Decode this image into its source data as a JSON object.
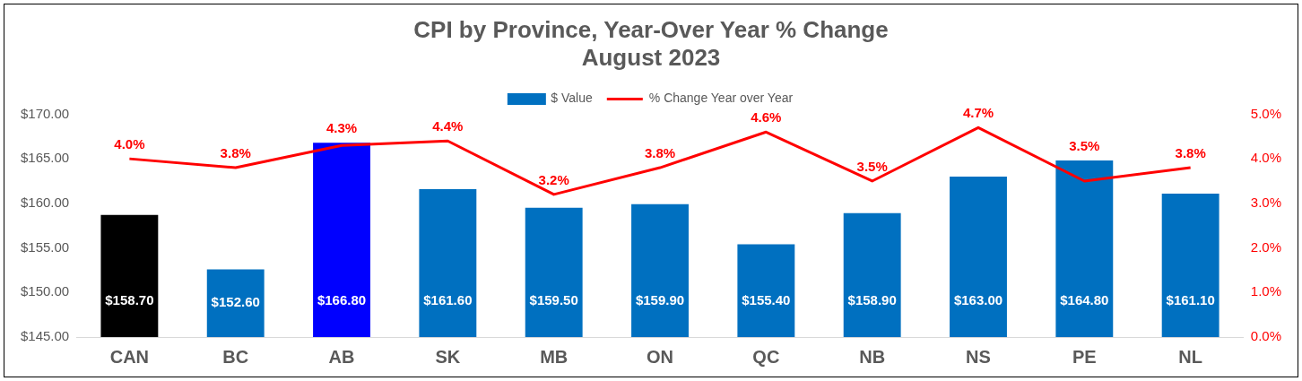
{
  "chart_data": {
    "type": "bar",
    "title": "CPI by Province, Year-Over Year % Change",
    "subtitle": "August 2023",
    "categories": [
      "CAN",
      "BC",
      "AB",
      "SK",
      "MB",
      "ON",
      "QC",
      "NB",
      "NS",
      "PE",
      "NL"
    ],
    "series": [
      {
        "name": "$ Value",
        "color": "#0070c0",
        "colors": [
          "#000000",
          "#0070c0",
          "#0000ff",
          "#0070c0",
          "#0070c0",
          "#0070c0",
          "#0070c0",
          "#0070c0",
          "#0070c0",
          "#0070c0",
          "#0070c0"
        ],
        "values": [
          158.7,
          152.6,
          166.8,
          161.6,
          159.5,
          159.9,
          155.4,
          158.9,
          163.0,
          164.8,
          161.1
        ],
        "value_labels": [
          "$158.70",
          "$152.60",
          "$166.80",
          "$161.60",
          "$159.50",
          "$159.90",
          "$155.40",
          "$158.90",
          "$163.00",
          "$164.80",
          "$161.10"
        ]
      },
      {
        "name": "% Change Year over Year",
        "type": "line",
        "axis": "y2",
        "color": "#ff0000",
        "values": [
          4.0,
          3.8,
          4.3,
          4.4,
          3.2,
          3.8,
          4.6,
          3.5,
          4.7,
          3.5,
          3.8
        ],
        "value_labels": [
          "4.0%",
          "3.8%",
          "4.3%",
          "4.4%",
          "3.2%",
          "3.8%",
          "4.6%",
          "3.5%",
          "4.7%",
          "3.5%",
          "3.8%"
        ]
      }
    ],
    "ylim": [
      145,
      170
    ],
    "yticks": [
      {
        "value": 145,
        "label": "$145.00"
      },
      {
        "value": 150,
        "label": "$150.00"
      },
      {
        "value": 155,
        "label": "$155.00"
      },
      {
        "value": 160,
        "label": "$160.00"
      },
      {
        "value": 165,
        "label": "$165.00"
      },
      {
        "value": 170,
        "label": "$170.00"
      }
    ],
    "y2lim": [
      0,
      5
    ],
    "y2ticks": [
      {
        "value": 0,
        "label": "0.0%"
      },
      {
        "value": 1,
        "label": "1.0%"
      },
      {
        "value": 2,
        "label": "2.0%"
      },
      {
        "value": 3,
        "label": "3.0%"
      },
      {
        "value": 4,
        "label": "4.0%"
      },
      {
        "value": 5,
        "label": "5.0%"
      }
    ],
    "grid": false,
    "legend": "top",
    "marker": "none",
    "line_style": "solid"
  }
}
